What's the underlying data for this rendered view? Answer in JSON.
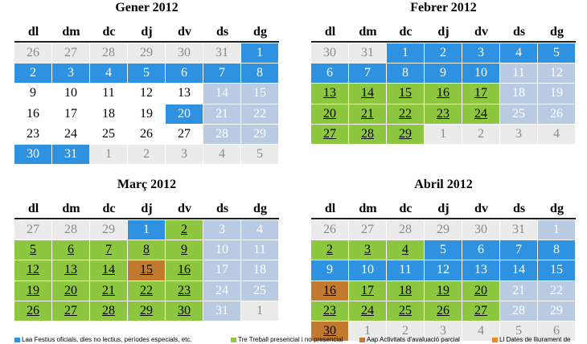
{
  "weekdays": [
    "dl",
    "dm",
    "dc",
    "dj",
    "dv",
    "ds",
    "dg"
  ],
  "styles": {
    "o": {
      "bg": "#ebebeb",
      "fg": "#8a8a8a",
      "u": false
    },
    "b": {
      "bg": "#2e92e0",
      "fg": "#ffffff",
      "u": false
    },
    "w": {
      "bg": "#ffffff",
      "fg": "#000000",
      "u": false
    },
    "p": {
      "bg": "#b9cbe3",
      "fg": "#ffffff",
      "u": false
    },
    "g": {
      "bg": "#8dc63f",
      "fg": "#000000",
      "u": true
    },
    "r": {
      "bg": "#c27a2e",
      "fg": "#000000",
      "u": true
    }
  },
  "calendars": [
    {
      "title": "Gener 2012",
      "weeks": [
        [
          [
            26,
            "o"
          ],
          [
            27,
            "o"
          ],
          [
            28,
            "o"
          ],
          [
            29,
            "o"
          ],
          [
            30,
            "o"
          ],
          [
            31,
            "o"
          ],
          [
            1,
            "b"
          ]
        ],
        [
          [
            2,
            "b"
          ],
          [
            3,
            "b"
          ],
          [
            4,
            "b"
          ],
          [
            5,
            "b"
          ],
          [
            6,
            "b"
          ],
          [
            7,
            "b"
          ],
          [
            8,
            "b"
          ]
        ],
        [
          [
            9,
            "w"
          ],
          [
            10,
            "w"
          ],
          [
            11,
            "w"
          ],
          [
            12,
            "w"
          ],
          [
            13,
            "w"
          ],
          [
            14,
            "p"
          ],
          [
            15,
            "p"
          ]
        ],
        [
          [
            16,
            "w"
          ],
          [
            17,
            "w"
          ],
          [
            18,
            "w"
          ],
          [
            19,
            "w"
          ],
          [
            20,
            "b"
          ],
          [
            21,
            "p"
          ],
          [
            22,
            "p"
          ]
        ],
        [
          [
            23,
            "w"
          ],
          [
            24,
            "w"
          ],
          [
            25,
            "w"
          ],
          [
            26,
            "w"
          ],
          [
            27,
            "w"
          ],
          [
            28,
            "p"
          ],
          [
            29,
            "p"
          ]
        ],
        [
          [
            30,
            "b"
          ],
          [
            31,
            "b"
          ],
          [
            1,
            "o"
          ],
          [
            2,
            "o"
          ],
          [
            3,
            "o"
          ],
          [
            4,
            "o"
          ],
          [
            5,
            "o"
          ]
        ]
      ]
    },
    {
      "title": "Febrer 2012",
      "weeks": [
        [
          [
            30,
            "o"
          ],
          [
            31,
            "o"
          ],
          [
            1,
            "b"
          ],
          [
            2,
            "b"
          ],
          [
            3,
            "b"
          ],
          [
            4,
            "b"
          ],
          [
            5,
            "b"
          ]
        ],
        [
          [
            6,
            "b"
          ],
          [
            7,
            "b"
          ],
          [
            8,
            "b"
          ],
          [
            9,
            "b"
          ],
          [
            10,
            "b"
          ],
          [
            11,
            "p"
          ],
          [
            12,
            "p"
          ]
        ],
        [
          [
            13,
            "g"
          ],
          [
            14,
            "g"
          ],
          [
            15,
            "g"
          ],
          [
            16,
            "g"
          ],
          [
            17,
            "g"
          ],
          [
            18,
            "p"
          ],
          [
            19,
            "p"
          ]
        ],
        [
          [
            20,
            "g"
          ],
          [
            21,
            "g"
          ],
          [
            22,
            "g"
          ],
          [
            23,
            "g"
          ],
          [
            24,
            "g"
          ],
          [
            25,
            "p"
          ],
          [
            26,
            "p"
          ]
        ],
        [
          [
            27,
            "g"
          ],
          [
            28,
            "g"
          ],
          [
            29,
            "g"
          ],
          [
            1,
            "o"
          ],
          [
            2,
            "o"
          ],
          [
            3,
            "o"
          ],
          [
            4,
            "o"
          ]
        ]
      ]
    },
    {
      "title": "Març 2012",
      "weeks": [
        [
          [
            27,
            "o"
          ],
          [
            28,
            "o"
          ],
          [
            29,
            "o"
          ],
          [
            1,
            "b"
          ],
          [
            2,
            "g"
          ],
          [
            3,
            "p"
          ],
          [
            4,
            "p"
          ]
        ],
        [
          [
            5,
            "g"
          ],
          [
            6,
            "g"
          ],
          [
            7,
            "g"
          ],
          [
            8,
            "g"
          ],
          [
            9,
            "g"
          ],
          [
            10,
            "p"
          ],
          [
            11,
            "p"
          ]
        ],
        [
          [
            12,
            "g"
          ],
          [
            13,
            "g"
          ],
          [
            14,
            "g"
          ],
          [
            15,
            "r"
          ],
          [
            16,
            "g"
          ],
          [
            17,
            "p"
          ],
          [
            18,
            "p"
          ]
        ],
        [
          [
            19,
            "g"
          ],
          [
            20,
            "g"
          ],
          [
            21,
            "g"
          ],
          [
            22,
            "g"
          ],
          [
            23,
            "g"
          ],
          [
            24,
            "p"
          ],
          [
            25,
            "p"
          ]
        ],
        [
          [
            26,
            "g"
          ],
          [
            27,
            "g"
          ],
          [
            28,
            "g"
          ],
          [
            29,
            "g"
          ],
          [
            30,
            "g"
          ],
          [
            31,
            "p"
          ],
          [
            1,
            "o"
          ]
        ]
      ]
    },
    {
      "title": "Abril 2012",
      "weeks": [
        [
          [
            26,
            "o"
          ],
          [
            27,
            "o"
          ],
          [
            28,
            "o"
          ],
          [
            29,
            "o"
          ],
          [
            30,
            "o"
          ],
          [
            31,
            "o"
          ],
          [
            1,
            "p"
          ]
        ],
        [
          [
            2,
            "g"
          ],
          [
            3,
            "g"
          ],
          [
            4,
            "g"
          ],
          [
            5,
            "b"
          ],
          [
            6,
            "b"
          ],
          [
            7,
            "b"
          ],
          [
            8,
            "b"
          ]
        ],
        [
          [
            9,
            "b"
          ],
          [
            10,
            "b"
          ],
          [
            11,
            "b"
          ],
          [
            12,
            "b"
          ],
          [
            13,
            "b"
          ],
          [
            14,
            "b"
          ],
          [
            15,
            "b"
          ]
        ],
        [
          [
            16,
            "r"
          ],
          [
            17,
            "g"
          ],
          [
            18,
            "g"
          ],
          [
            19,
            "g"
          ],
          [
            20,
            "g"
          ],
          [
            21,
            "p"
          ],
          [
            22,
            "p"
          ]
        ],
        [
          [
            23,
            "g"
          ],
          [
            24,
            "g"
          ],
          [
            25,
            "g"
          ],
          [
            26,
            "g"
          ],
          [
            27,
            "g"
          ],
          [
            28,
            "p"
          ],
          [
            29,
            "p"
          ]
        ],
        [
          [
            30,
            "r"
          ],
          [
            1,
            "o"
          ],
          [
            2,
            "o"
          ],
          [
            3,
            "o"
          ],
          [
            4,
            "o"
          ],
          [
            5,
            "o"
          ],
          [
            6,
            "o"
          ]
        ]
      ]
    }
  ],
  "legend": [
    {
      "text": "Laa Festius oficials, dies no lectius, períodes especials, etc.",
      "color": "#2e92e0"
    },
    {
      "text": "Tre Treball presencial i no presencial",
      "color": "#8dc63f"
    },
    {
      "text": "Aap Activitats d'avaluació parcial",
      "color": "#c27a2e"
    },
    {
      "text": "Ll Dates de lliurament de",
      "color": "#e8892e"
    }
  ]
}
